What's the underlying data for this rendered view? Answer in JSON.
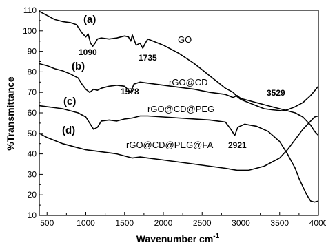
{
  "chart_data": {
    "type": "line",
    "title": "",
    "xlabel": "Wavenumber cm",
    "xlabel_superscript": "-1",
    "ylabel": "%Transmittance",
    "xlim": [
      400,
      4000
    ],
    "ylim": [
      10,
      110
    ],
    "xticks": [
      500,
      1000,
      1500,
      2000,
      2500,
      3000,
      3500,
      4000
    ],
    "yticks": [
      10,
      20,
      30,
      40,
      50,
      60,
      70,
      80,
      90,
      100,
      110
    ],
    "xtick_labels": [
      "500",
      "1000",
      "1500",
      "2000",
      "2500",
      "3000",
      "3500",
      "4000"
    ],
    "ytick_labels": [
      "10",
      "20",
      "30",
      "40",
      "50",
      "60",
      "70",
      "80",
      "90",
      "100",
      "110"
    ],
    "grid": false,
    "series": [
      {
        "name": "GO",
        "points": [
          [
            400,
            109.5
          ],
          [
            500,
            107.5
          ],
          [
            600,
            105.5
          ],
          [
            700,
            104.5
          ],
          [
            800,
            104
          ],
          [
            880,
            103
          ],
          [
            950,
            99
          ],
          [
            1000,
            97
          ],
          [
            1030,
            98.5
          ],
          [
            1060,
            94
          ],
          [
            1090,
            92.5
          ],
          [
            1120,
            94
          ],
          [
            1150,
            96
          ],
          [
            1200,
            96.5
          ],
          [
            1300,
            96
          ],
          [
            1400,
            96.5
          ],
          [
            1500,
            97.5
          ],
          [
            1550,
            97
          ],
          [
            1580,
            95
          ],
          [
            1600,
            98
          ],
          [
            1650,
            93
          ],
          [
            1700,
            94
          ],
          [
            1735,
            91.5
          ],
          [
            1760,
            93.5
          ],
          [
            1800,
            96
          ],
          [
            1900,
            94.5
          ],
          [
            2000,
            93
          ],
          [
            2100,
            91
          ],
          [
            2200,
            89
          ],
          [
            2300,
            86.5
          ],
          [
            2400,
            84
          ],
          [
            2500,
            81
          ],
          [
            2600,
            78
          ],
          [
            2700,
            75
          ],
          [
            2800,
            72
          ],
          [
            2900,
            70
          ],
          [
            2950,
            68
          ],
          [
            3000,
            66.5
          ],
          [
            3100,
            65
          ],
          [
            3200,
            63.5
          ],
          [
            3300,
            62
          ],
          [
            3400,
            61.5
          ],
          [
            3529,
            61
          ],
          [
            3600,
            61.5
          ],
          [
            3700,
            63
          ],
          [
            3800,
            65
          ],
          [
            3900,
            68.5
          ],
          [
            4000,
            73
          ]
        ]
      },
      {
        "name": "rGO@CD",
        "points": [
          [
            400,
            84
          ],
          [
            500,
            83
          ],
          [
            600,
            81.5
          ],
          [
            700,
            80.5
          ],
          [
            800,
            79
          ],
          [
            900,
            77
          ],
          [
            950,
            74
          ],
          [
            1000,
            71.5
          ],
          [
            1050,
            70
          ],
          [
            1100,
            71.5
          ],
          [
            1150,
            71
          ],
          [
            1200,
            72
          ],
          [
            1300,
            73
          ],
          [
            1400,
            73.5
          ],
          [
            1500,
            73
          ],
          [
            1578,
            70
          ],
          [
            1620,
            74
          ],
          [
            1700,
            75
          ],
          [
            1800,
            74.5
          ],
          [
            2000,
            73.5
          ],
          [
            2200,
            72.5
          ],
          [
            2400,
            71.5
          ],
          [
            2600,
            70
          ],
          [
            2800,
            69
          ],
          [
            2900,
            67.5
          ],
          [
            2950,
            68.5
          ],
          [
            3000,
            67
          ],
          [
            3100,
            66
          ],
          [
            3200,
            65
          ],
          [
            3300,
            64
          ],
          [
            3400,
            63
          ],
          [
            3500,
            62
          ],
          [
            3600,
            61
          ],
          [
            3700,
            60
          ],
          [
            3800,
            58
          ],
          [
            3900,
            54
          ],
          [
            3950,
            51
          ],
          [
            4000,
            49
          ]
        ]
      },
      {
        "name": "rGO@CD@PEG",
        "points": [
          [
            400,
            63.5
          ],
          [
            500,
            63
          ],
          [
            600,
            62.5
          ],
          [
            700,
            62
          ],
          [
            800,
            61
          ],
          [
            900,
            60
          ],
          [
            1000,
            58
          ],
          [
            1050,
            55
          ],
          [
            1100,
            52
          ],
          [
            1150,
            53
          ],
          [
            1200,
            56
          ],
          [
            1300,
            56.5
          ],
          [
            1400,
            56
          ],
          [
            1500,
            57
          ],
          [
            1600,
            57.5
          ],
          [
            1700,
            58.5
          ],
          [
            1800,
            58.5
          ],
          [
            2000,
            58
          ],
          [
            2200,
            57.5
          ],
          [
            2400,
            57
          ],
          [
            2600,
            56.5
          ],
          [
            2800,
            55.5
          ],
          [
            2870,
            52
          ],
          [
            2921,
            49
          ],
          [
            2960,
            53
          ],
          [
            3050,
            54.5
          ],
          [
            3200,
            53.5
          ],
          [
            3350,
            51
          ],
          [
            3500,
            46
          ],
          [
            3600,
            40
          ],
          [
            3700,
            33
          ],
          [
            3750,
            28
          ],
          [
            3800,
            24
          ],
          [
            3850,
            20
          ],
          [
            3900,
            17
          ],
          [
            3950,
            16.5
          ],
          [
            4000,
            17
          ]
        ]
      },
      {
        "name": "rGO@CD@PEG@FA",
        "points": [
          [
            400,
            50
          ],
          [
            500,
            48
          ],
          [
            600,
            46.5
          ],
          [
            700,
            45
          ],
          [
            800,
            44
          ],
          [
            900,
            43
          ],
          [
            1000,
            42
          ],
          [
            1100,
            41.5
          ],
          [
            1200,
            41
          ],
          [
            1300,
            40.5
          ],
          [
            1400,
            40
          ],
          [
            1500,
            39
          ],
          [
            1600,
            38
          ],
          [
            1700,
            38.5
          ],
          [
            1800,
            38
          ],
          [
            2000,
            37
          ],
          [
            2200,
            36
          ],
          [
            2400,
            35
          ],
          [
            2600,
            34
          ],
          [
            2800,
            33
          ],
          [
            2950,
            32
          ],
          [
            3100,
            32
          ],
          [
            3300,
            34
          ],
          [
            3500,
            38
          ],
          [
            3600,
            42
          ],
          [
            3700,
            47
          ],
          [
            3800,
            52
          ],
          [
            3900,
            56
          ],
          [
            3950,
            58
          ],
          [
            4000,
            58.5
          ]
        ]
      }
    ],
    "annotations": {
      "label_a": "(a)",
      "label_b": "(b)",
      "label_c": "(c)",
      "label_d": "(d)",
      "name_go": "GO",
      "name_rgo_cd": "rGO@CD",
      "name_rgo_cd_peg": "rGO@CD@PEG",
      "name_rgo_cd_peg_fa": "rGO@CD@PEG@FA",
      "peak_1090": "1090",
      "peak_1735": "1735",
      "peak_1578": "1578",
      "peak_3529": "3529",
      "peak_2921": "2921"
    }
  }
}
